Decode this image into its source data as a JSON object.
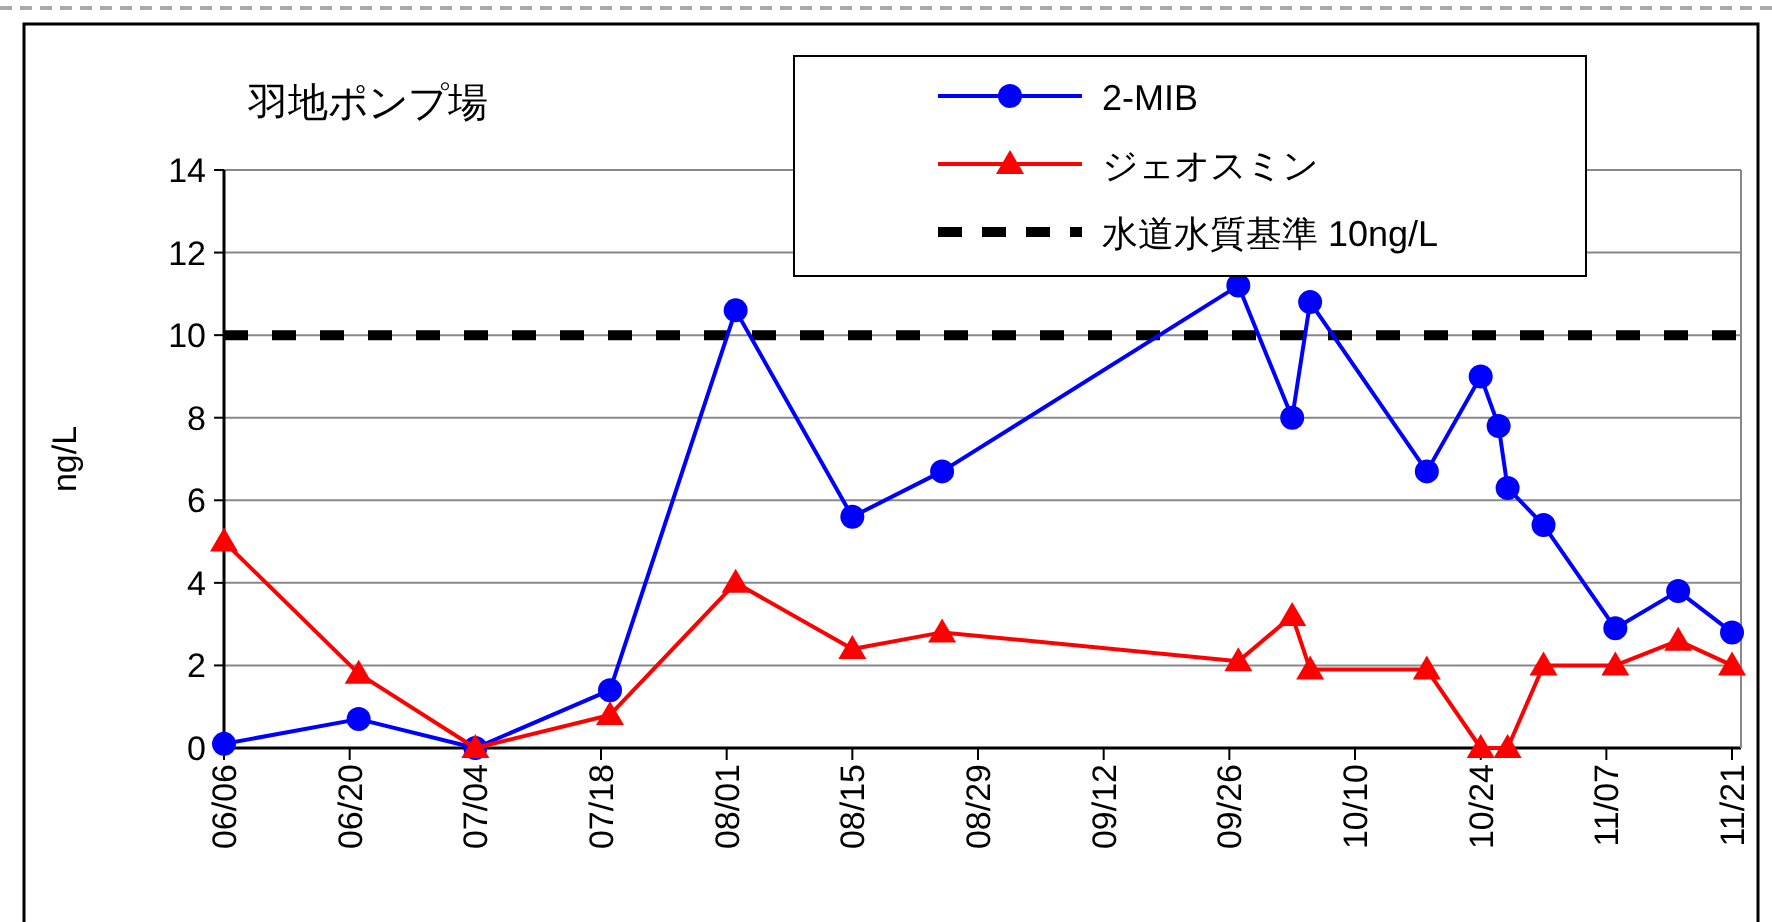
{
  "chart_data": {
    "type": "line",
    "title": "羽地ポンプ場",
    "ylabel": "ng/L",
    "x": [
      "--06-06",
      "--06-21",
      "--07-04",
      "--07-19",
      "--08-02",
      "--08-15",
      "--08-25",
      "--09-27",
      "--10-03",
      "--10-05",
      "--10-18",
      "--10-24",
      "--10-26",
      "--10-27",
      "--10-31",
      "--11-08",
      "--11-15",
      "--11-21"
    ],
    "series": [
      {
        "name": "2-MIB",
        "color": "#0000ff",
        "marker": "circle",
        "values": [
          0.1,
          0.7,
          0.0,
          1.4,
          10.6,
          5.6,
          6.7,
          11.2,
          8.0,
          10.8,
          6.7,
          9.0,
          7.8,
          6.3,
          5.4,
          2.9,
          3.8,
          2.8
        ]
      },
      {
        "name": "ジェオスミン",
        "color": "#ff0000",
        "marker": "triangle",
        "values": [
          5.0,
          1.8,
          0.0,
          0.8,
          4.0,
          2.4,
          2.8,
          2.1,
          3.2,
          1.9,
          1.9,
          0.0,
          null,
          0.0,
          2.0,
          2.0,
          2.6,
          2.0
        ]
      }
    ],
    "ref_lines": [
      {
        "axis": "y",
        "value": 10,
        "label": "水道水質基準 10ng/L",
        "color": "#000000",
        "line_style": "dashed"
      }
    ],
    "xlim": [
      "--06-06",
      "--11-22"
    ],
    "xticks": [
      {
        "value": "--06-06",
        "label": "06/06"
      },
      {
        "value": "--06-20",
        "label": "06/20"
      },
      {
        "value": "--07-04",
        "label": "07/04"
      },
      {
        "value": "--07-18",
        "label": "07/18"
      },
      {
        "value": "--08-01",
        "label": "08/01"
      },
      {
        "value": "--08-15",
        "label": "08/15"
      },
      {
        "value": "--08-29",
        "label": "08/29"
      },
      {
        "value": "--09-12",
        "label": "09/12"
      },
      {
        "value": "--09-26",
        "label": "09/26"
      },
      {
        "value": "--10-10",
        "label": "10/10"
      },
      {
        "value": "--10-24",
        "label": "10/24"
      },
      {
        "value": "--11-07",
        "label": "11/07"
      },
      {
        "value": "--11-21",
        "label": "11/21"
      }
    ],
    "ylim": [
      0,
      14
    ],
    "yticks": [
      0,
      2,
      4,
      6,
      8,
      10,
      12,
      14
    ],
    "grid": "y",
    "legend": "top"
  }
}
